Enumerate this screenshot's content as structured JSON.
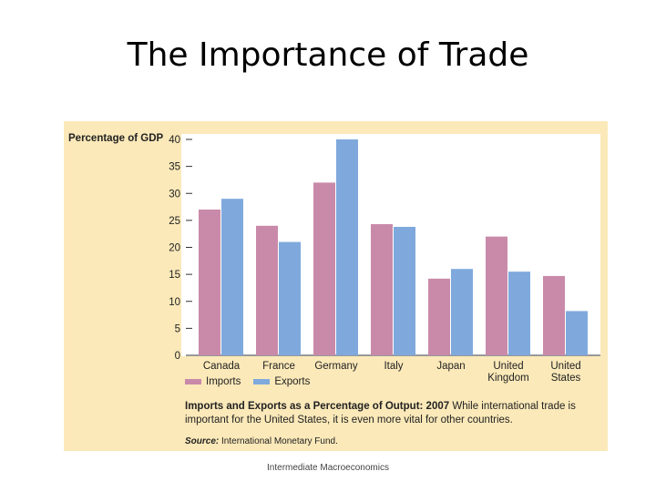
{
  "slide": {
    "title": "The Importance of Trade",
    "footer": "Intermediate Macroeconomics"
  },
  "colors": {
    "background_panel": "#fbe9b9",
    "imports": "#c98aaa",
    "exports": "#7fa9dc"
  },
  "chart_data": {
    "type": "bar",
    "ylabel": "Percentage of GDP",
    "ylim": [
      0,
      40
    ],
    "yticks": [
      0,
      5,
      10,
      15,
      20,
      25,
      30,
      35,
      40
    ],
    "grid": false,
    "legend_position": "bottom-left",
    "categories": [
      "Canada",
      "France",
      "Germany",
      "Italy",
      "Japan",
      "United Kingdom",
      "United States"
    ],
    "category_lines": [
      [
        "Canada"
      ],
      [
        "France"
      ],
      [
        "Germany"
      ],
      [
        "Italy"
      ],
      [
        "Japan"
      ],
      [
        "United",
        "Kingdom"
      ],
      [
        "United",
        "States"
      ]
    ],
    "series": [
      {
        "name": "Imports",
        "values": [
          27,
          24,
          32,
          24.3,
          14.2,
          22,
          14.7
        ]
      },
      {
        "name": "Exports",
        "values": [
          29,
          21,
          40,
          23.8,
          16,
          15.5,
          8.2
        ]
      }
    ],
    "caption_title": "Imports and Exports as a Percentage of Output: 2007",
    "caption_text": "While international trade is important for the United States, it is even more vital for other countries.",
    "source_label": "Source:",
    "source_text": "International Monetary Fund."
  }
}
